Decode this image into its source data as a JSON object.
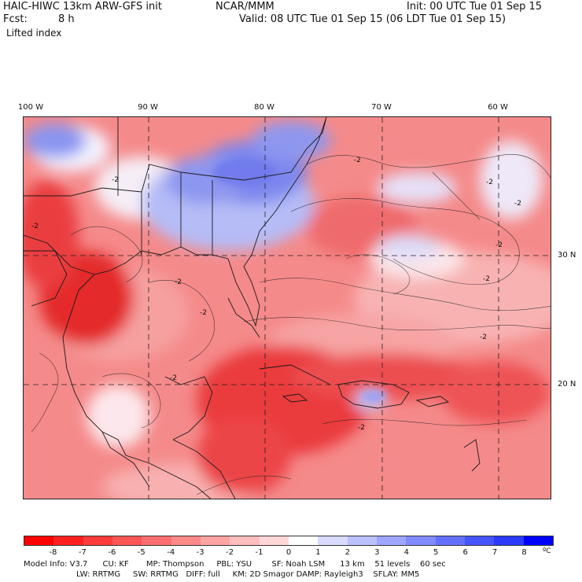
{
  "header": {
    "model_title": "HAIC-HIWC 13km ARW-GFS init",
    "org": "NCAR/MMM",
    "init": "Init: 00 UTC Tue 01 Sep 15",
    "fcst_label": "Fcst:",
    "fcst_value": "8 h",
    "valid": "Valid: 08 UTC Tue 01 Sep 15 (06 LDT Tue 01 Sep 15)",
    "field": "Lifted index"
  },
  "map": {
    "lon_labels": [
      "100 W",
      "90 W",
      "80 W",
      "70 W",
      "60 W"
    ],
    "lat_labels": [
      "30 N",
      "20 N"
    ],
    "contour_label": "-2",
    "colors": {
      "strong_red": "#e8282b",
      "mid_red": "#f06868",
      "light_red": "#f8b4b4",
      "blue": "#6e7cf2",
      "light_blue": "#bfc6f8"
    }
  },
  "colorbar": {
    "ticks": [
      "-8",
      "-7",
      "-6",
      "-5",
      "-4",
      "-3",
      "-2",
      "-1",
      "0",
      "1",
      "2",
      "3",
      "4",
      "5",
      "6",
      "7",
      "8"
    ],
    "unit": "ºC",
    "colors": [
      "#ff0000",
      "#ff1f1f",
      "#ff3b3b",
      "#ff5555",
      "#ff6f6f",
      "#ff8989",
      "#ffa3a3",
      "#ffbdbd",
      "#ffd7d7",
      "#ffffff",
      "#d9dcff",
      "#bcc1ff",
      "#9ea6ff",
      "#818bff",
      "#6470ff",
      "#4655ff",
      "#2a3aff",
      "#0000ff"
    ]
  },
  "footer": {
    "line1": "Model Info: V3.7      CU: KF       MP: Thompson     PBL: YSU        SF: Noah LSM      13 km    51 levels    60 sec",
    "line2": "LW: RRTMG     SW: RRTMG   DIFF: full     KM: 2D Smagor DAMP: Rayleigh3    SFLAY: MM5"
  }
}
